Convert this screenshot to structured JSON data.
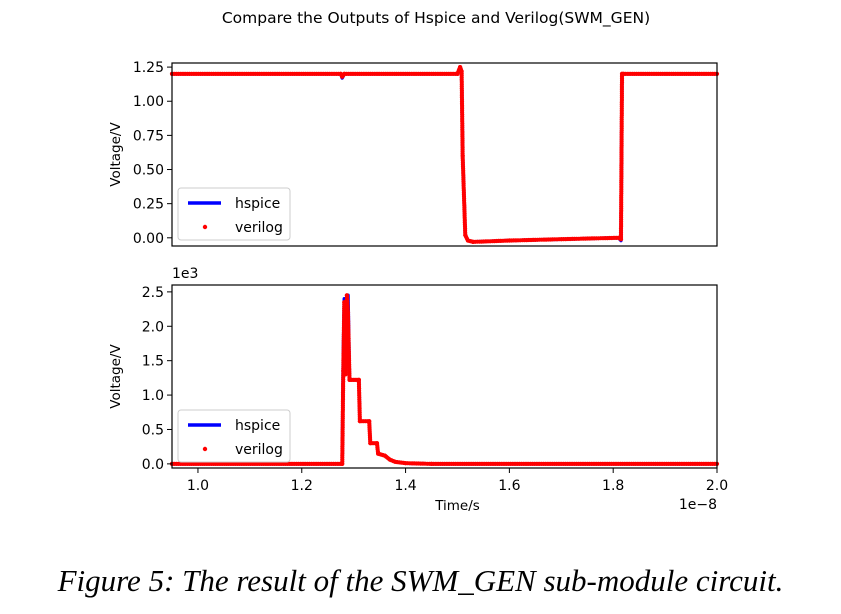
{
  "figure": {
    "title": "Compare the Outputs of Hspice and Verilog(SWM_GEN)",
    "caption": "Figure 5: The result of the SWM_GEN sub-module circuit."
  },
  "chart_data": [
    {
      "type": "line",
      "ylabel": "Voltage/V",
      "xlabel": "",
      "xlim": [
        0.95,
        2.0
      ],
      "ylim": [
        -0.06,
        1.28
      ],
      "yticks": [
        "0.00",
        "0.25",
        "0.50",
        "0.75",
        "1.00",
        "1.25"
      ],
      "ytick_values": [
        0,
        0.25,
        0.5,
        0.75,
        1.0,
        1.25
      ],
      "xticks_visible": false,
      "legend": {
        "position": "lower-left",
        "entries": [
          "hspice",
          "verilog"
        ]
      },
      "series": [
        {
          "name": "hspice",
          "style": "line",
          "color": "#0000ff",
          "x": [
            0.95,
            1.275,
            1.278,
            1.282,
            1.5,
            1.505,
            1.508,
            1.51,
            1.515,
            1.52,
            1.53,
            1.6,
            1.7,
            1.81,
            1.815,
            1.817,
            1.82,
            2.0
          ],
          "y": [
            1.2,
            1.2,
            1.17,
            1.2,
            1.2,
            1.25,
            1.22,
            0.6,
            0.02,
            -0.02,
            -0.03,
            -0.02,
            -0.01,
            0.0,
            -0.02,
            1.2,
            1.2,
            1.2
          ]
        },
        {
          "name": "verilog",
          "style": "dots",
          "color": "#ff0000",
          "x": [
            0.95,
            1.275,
            1.278,
            1.282,
            1.5,
            1.505,
            1.508,
            1.51,
            1.515,
            1.52,
            1.53,
            1.6,
            1.7,
            1.81,
            1.815,
            1.817,
            1.82,
            2.0
          ],
          "y": [
            1.2,
            1.2,
            1.18,
            1.2,
            1.2,
            1.25,
            1.22,
            0.6,
            0.02,
            -0.02,
            -0.03,
            -0.02,
            -0.01,
            0.0,
            -0.01,
            1.2,
            1.2,
            1.2
          ]
        }
      ]
    },
    {
      "type": "line",
      "ylabel": "Voltage/V",
      "xlabel": "Time/s",
      "xlim": [
        0.95,
        2.0
      ],
      "ylim": [
        -0.06,
        2.6
      ],
      "yticks": [
        "0.0",
        "0.5",
        "1.0",
        "1.5",
        "2.0",
        "2.5"
      ],
      "ytick_values": [
        0,
        0.5,
        1.0,
        1.5,
        2.0,
        2.5
      ],
      "y_offset_label": "1e3",
      "xticks": [
        "1.0",
        "1.2",
        "1.4",
        "1.6",
        "1.8",
        "2.0"
      ],
      "xtick_values": [
        1.0,
        1.2,
        1.4,
        1.6,
        1.8,
        2.0
      ],
      "x_offset_label": "1e−8",
      "legend": {
        "position": "lower-left",
        "entries": [
          "hspice",
          "verilog"
        ]
      },
      "series": [
        {
          "name": "hspice",
          "style": "line",
          "color": "#0000ff",
          "x": [
            0.95,
            1.278,
            1.28,
            1.282,
            1.284,
            1.287,
            1.289,
            1.292,
            1.31,
            1.312,
            1.33,
            1.332,
            1.345,
            1.347,
            1.36,
            1.37,
            1.38,
            1.4,
            1.45,
            2.0
          ],
          "y": [
            0.0,
            0.0,
            1.6,
            2.4,
            1.3,
            2.45,
            2.45,
            1.22,
            1.22,
            0.62,
            0.62,
            0.3,
            0.3,
            0.15,
            0.12,
            0.06,
            0.03,
            0.01,
            0.0,
            0.0
          ]
        },
        {
          "name": "verilog",
          "style": "dots",
          "color": "#ff0000",
          "x": [
            0.95,
            1.278,
            1.28,
            1.282,
            1.284,
            1.287,
            1.289,
            1.292,
            1.31,
            1.312,
            1.33,
            1.332,
            1.345,
            1.347,
            1.36,
            1.37,
            1.38,
            1.4,
            1.45,
            2.0
          ],
          "y": [
            0.0,
            0.0,
            1.35,
            2.35,
            1.3,
            2.45,
            2.2,
            1.22,
            1.22,
            0.62,
            0.62,
            0.3,
            0.3,
            0.15,
            0.12,
            0.06,
            0.03,
            0.01,
            0.0,
            0.0
          ]
        }
      ]
    }
  ]
}
